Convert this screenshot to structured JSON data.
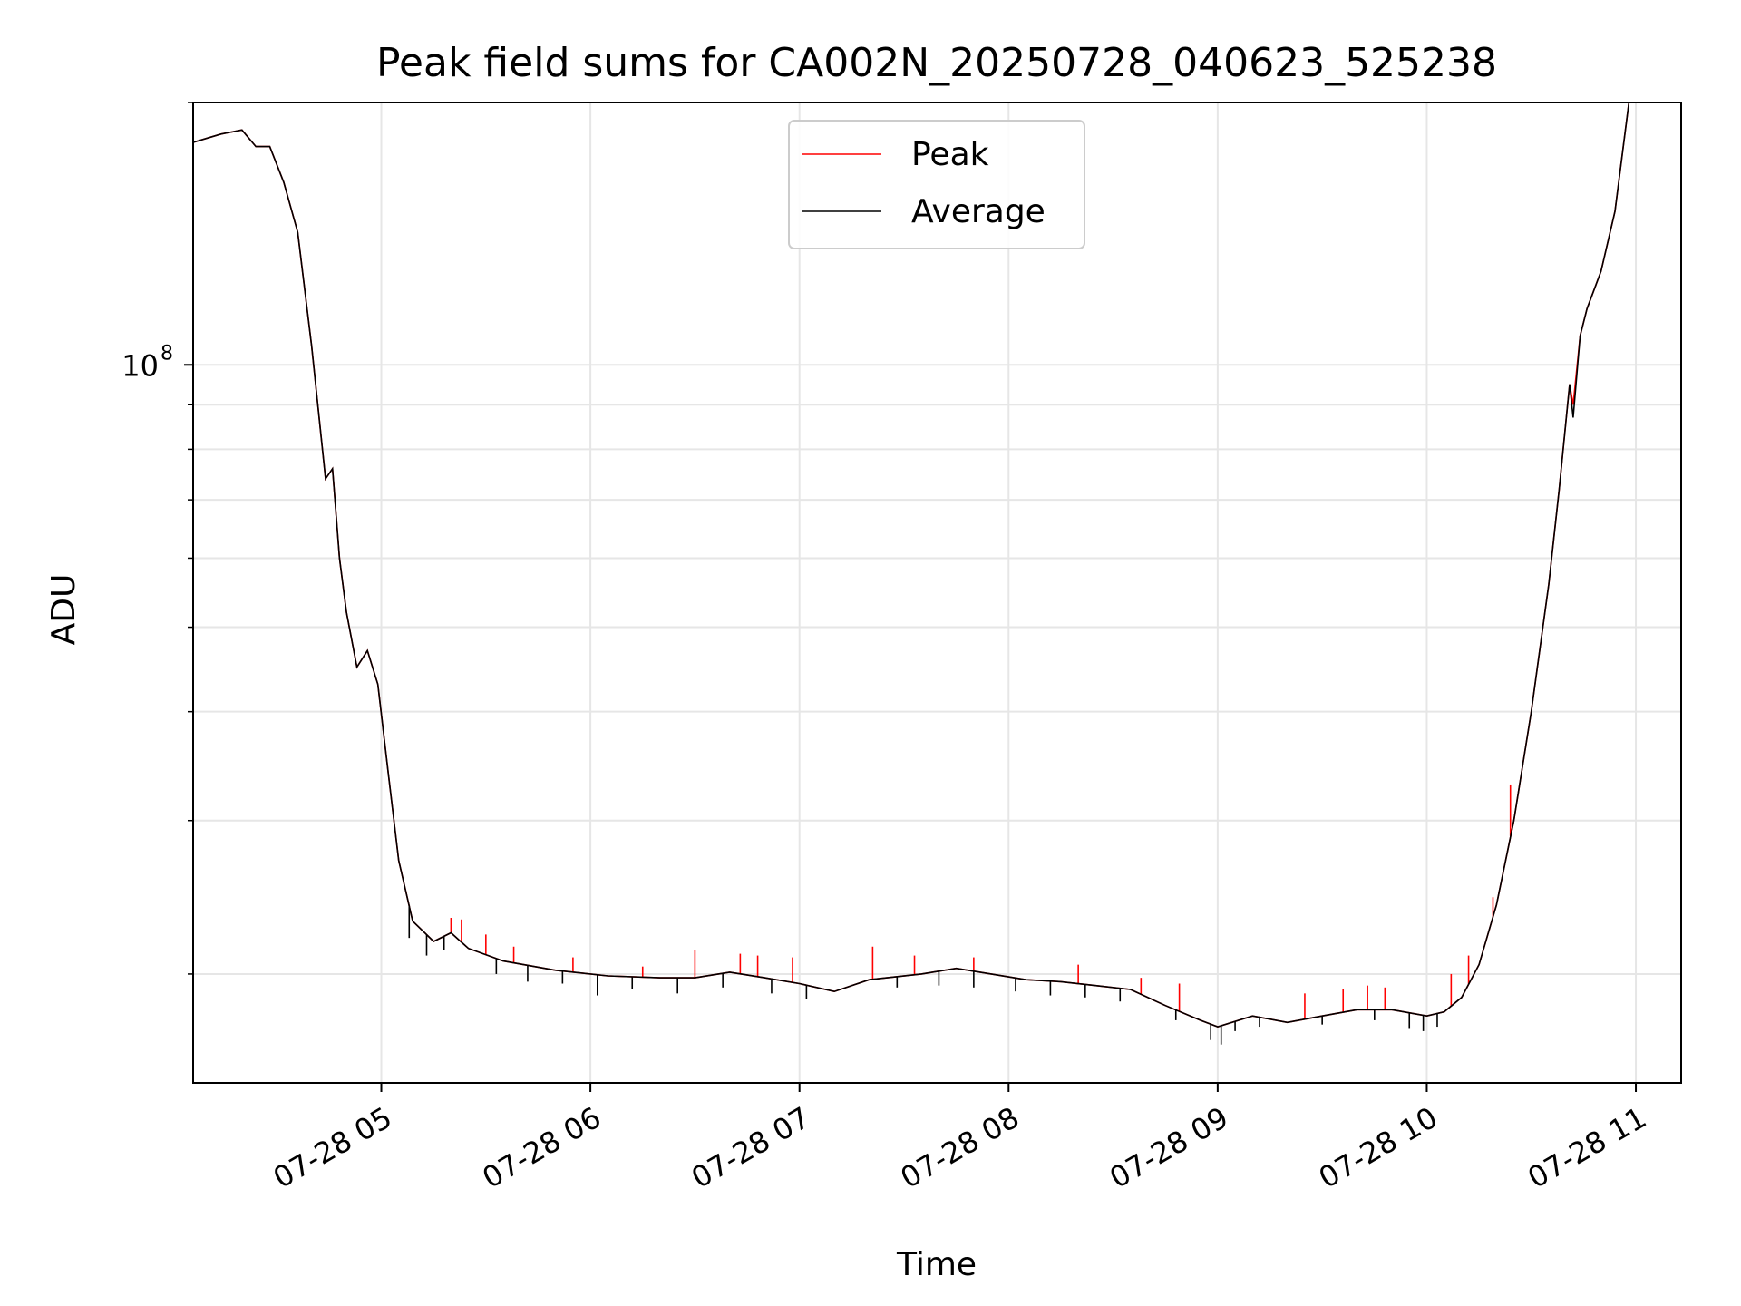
{
  "chart_data": {
    "type": "line",
    "title": "Peak field sums for CA002N_20250728_040623_525238",
    "xlabel": "Time",
    "ylabel": "ADU",
    "x_scale": "time",
    "y_scale": "log",
    "xlim": [
      "2025-07-28 04:06",
      "2025-07-28 11:13"
    ],
    "ylim": [
      15000000,
      200000000
    ],
    "x_ticks": [
      "07-28 05",
      "07-28 06",
      "07-28 07",
      "07-28 08",
      "07-28 09",
      "07-28 10",
      "07-28 11"
    ],
    "x_tick_times": [
      "2025-07-28 05:00",
      "2025-07-28 06:00",
      "2025-07-28 07:00",
      "2025-07-28 08:00",
      "2025-07-28 09:00",
      "2025-07-28 10:00",
      "2025-07-28 11:00"
    ],
    "y_major_ticks": [
      {
        "value": 100000000,
        "label_base": "10",
        "label_exp": "8"
      }
    ],
    "y_minor_ticks": [
      20000000,
      30000000,
      40000000,
      50000000,
      60000000,
      70000000,
      80000000,
      90000000,
      200000000
    ],
    "grid": true,
    "legend_position": "top-center",
    "series": [
      {
        "name": "Peak",
        "color": "#ff0000",
        "points": [
          [
            "2025-07-28 04:06",
            180000000
          ],
          [
            "2025-07-28 04:14",
            184000000
          ],
          [
            "2025-07-28 04:20",
            186000000
          ],
          [
            "2025-07-28 04:24",
            178000000
          ],
          [
            "2025-07-28 04:28",
            178000000
          ],
          [
            "2025-07-28 04:32",
            162000000
          ],
          [
            "2025-07-28 04:36",
            142000000
          ],
          [
            "2025-07-28 04:40",
            105000000
          ],
          [
            "2025-07-28 04:44",
            74000000
          ],
          [
            "2025-07-28 04:46",
            76000000
          ],
          [
            "2025-07-28 04:48",
            60000000
          ],
          [
            "2025-07-28 04:50",
            52000000
          ],
          [
            "2025-07-28 04:53",
            45000000
          ],
          [
            "2025-07-28 04:56",
            47000000
          ],
          [
            "2025-07-28 04:59",
            43000000
          ],
          [
            "2025-07-28 05:02",
            34000000
          ],
          [
            "2025-07-28 05:05",
            27000000
          ],
          [
            "2025-07-28 05:09",
            23000000
          ],
          [
            "2025-07-28 05:15",
            21800000
          ],
          [
            "2025-07-28 05:20",
            22300000
          ],
          [
            "2025-07-28 05:25",
            21400000
          ],
          [
            "2025-07-28 05:35",
            20700000
          ],
          [
            "2025-07-28 05:50",
            20200000
          ],
          [
            "2025-07-28 06:05",
            19900000
          ],
          [
            "2025-07-28 06:20",
            19800000
          ],
          [
            "2025-07-28 06:30",
            19800000
          ],
          [
            "2025-07-28 06:40",
            20100000
          ],
          [
            "2025-07-28 06:50",
            19800000
          ],
          [
            "2025-07-28 07:00",
            19500000
          ],
          [
            "2025-07-28 07:10",
            19100000
          ],
          [
            "2025-07-28 07:20",
            19700000
          ],
          [
            "2025-07-28 07:35",
            20000000
          ],
          [
            "2025-07-28 07:45",
            20300000
          ],
          [
            "2025-07-28 07:55",
            20000000
          ],
          [
            "2025-07-28 08:05",
            19700000
          ],
          [
            "2025-07-28 08:15",
            19600000
          ],
          [
            "2025-07-28 08:25",
            19400000
          ],
          [
            "2025-07-28 08:35",
            19200000
          ],
          [
            "2025-07-28 08:45",
            18400000
          ],
          [
            "2025-07-28 08:55",
            17700000
          ],
          [
            "2025-07-28 09:00",
            17400000
          ],
          [
            "2025-07-28 09:10",
            17900000
          ],
          [
            "2025-07-28 09:20",
            17600000
          ],
          [
            "2025-07-28 09:30",
            17900000
          ],
          [
            "2025-07-28 09:40",
            18200000
          ],
          [
            "2025-07-28 09:50",
            18200000
          ],
          [
            "2025-07-28 10:00",
            17900000
          ],
          [
            "2025-07-28 10:05",
            18100000
          ],
          [
            "2025-07-28 10:10",
            18800000
          ],
          [
            "2025-07-28 10:15",
            20500000
          ],
          [
            "2025-07-28 10:20",
            24000000
          ],
          [
            "2025-07-28 10:25",
            30000000
          ],
          [
            "2025-07-28 10:30",
            40000000
          ],
          [
            "2025-07-28 10:35",
            56000000
          ],
          [
            "2025-07-28 10:38",
            72000000
          ],
          [
            "2025-07-28 10:41",
            95000000
          ],
          [
            "2025-07-28 10:42",
            90000000
          ],
          [
            "2025-07-28 10:44",
            108000000
          ],
          [
            "2025-07-28 10:46",
            116000000
          ],
          [
            "2025-07-28 10:50",
            128000000
          ],
          [
            "2025-07-28 10:54",
            150000000
          ],
          [
            "2025-07-28 10:58",
            200000000
          ]
        ]
      },
      {
        "name": "Average",
        "color": "#000000",
        "points": [
          [
            "2025-07-28 04:06",
            180000000
          ],
          [
            "2025-07-28 04:14",
            184000000
          ],
          [
            "2025-07-28 04:20",
            186000000
          ],
          [
            "2025-07-28 04:24",
            178000000
          ],
          [
            "2025-07-28 04:28",
            178000000
          ],
          [
            "2025-07-28 04:32",
            162000000
          ],
          [
            "2025-07-28 04:36",
            142000000
          ],
          [
            "2025-07-28 04:40",
            105000000
          ],
          [
            "2025-07-28 04:44",
            74000000
          ],
          [
            "2025-07-28 04:46",
            76000000
          ],
          [
            "2025-07-28 04:48",
            60000000
          ],
          [
            "2025-07-28 04:50",
            52000000
          ],
          [
            "2025-07-28 04:53",
            45000000
          ],
          [
            "2025-07-28 04:56",
            47000000
          ],
          [
            "2025-07-28 04:59",
            43000000
          ],
          [
            "2025-07-28 05:02",
            34000000
          ],
          [
            "2025-07-28 05:05",
            27000000
          ],
          [
            "2025-07-28 05:09",
            23000000
          ],
          [
            "2025-07-28 05:15",
            21800000
          ],
          [
            "2025-07-28 05:20",
            22300000
          ],
          [
            "2025-07-28 05:25",
            21400000
          ],
          [
            "2025-07-28 05:35",
            20700000
          ],
          [
            "2025-07-28 05:50",
            20200000
          ],
          [
            "2025-07-28 06:05",
            19900000
          ],
          [
            "2025-07-28 06:20",
            19800000
          ],
          [
            "2025-07-28 06:30",
            19800000
          ],
          [
            "2025-07-28 06:40",
            20100000
          ],
          [
            "2025-07-28 06:50",
            19800000
          ],
          [
            "2025-07-28 07:00",
            19500000
          ],
          [
            "2025-07-28 07:10",
            19100000
          ],
          [
            "2025-07-28 07:20",
            19700000
          ],
          [
            "2025-07-28 07:35",
            20000000
          ],
          [
            "2025-07-28 07:45",
            20300000
          ],
          [
            "2025-07-28 07:55",
            20000000
          ],
          [
            "2025-07-28 08:05",
            19700000
          ],
          [
            "2025-07-28 08:15",
            19600000
          ],
          [
            "2025-07-28 08:25",
            19400000
          ],
          [
            "2025-07-28 08:35",
            19200000
          ],
          [
            "2025-07-28 08:45",
            18400000
          ],
          [
            "2025-07-28 08:55",
            17700000
          ],
          [
            "2025-07-28 09:00",
            17400000
          ],
          [
            "2025-07-28 09:10",
            17900000
          ],
          [
            "2025-07-28 09:20",
            17600000
          ],
          [
            "2025-07-28 09:30",
            17900000
          ],
          [
            "2025-07-28 09:40",
            18200000
          ],
          [
            "2025-07-28 09:50",
            18200000
          ],
          [
            "2025-07-28 10:00",
            17900000
          ],
          [
            "2025-07-28 10:05",
            18100000
          ],
          [
            "2025-07-28 10:10",
            18800000
          ],
          [
            "2025-07-28 10:15",
            20500000
          ],
          [
            "2025-07-28 10:20",
            24000000
          ],
          [
            "2025-07-28 10:25",
            30000000
          ],
          [
            "2025-07-28 10:30",
            40000000
          ],
          [
            "2025-07-28 10:35",
            56000000
          ],
          [
            "2025-07-28 10:38",
            72000000
          ],
          [
            "2025-07-28 10:41",
            95000000
          ],
          [
            "2025-07-28 10:42",
            87000000
          ],
          [
            "2025-07-28 10:44",
            108000000
          ],
          [
            "2025-07-28 10:46",
            116000000
          ],
          [
            "2025-07-28 10:50",
            128000000
          ],
          [
            "2025-07-28 10:54",
            150000000
          ],
          [
            "2025-07-28 10:58",
            200000000
          ]
        ],
        "dips": [
          [
            "2025-07-28 05:08",
            22000000
          ],
          [
            "2025-07-28 05:13",
            21000000
          ],
          [
            "2025-07-28 05:18",
            21300000
          ],
          [
            "2025-07-28 05:33",
            20000000
          ],
          [
            "2025-07-28 05:42",
            19600000
          ],
          [
            "2025-07-28 05:52",
            19500000
          ],
          [
            "2025-07-28 06:02",
            18900000
          ],
          [
            "2025-07-28 06:12",
            19200000
          ],
          [
            "2025-07-28 06:25",
            19000000
          ],
          [
            "2025-07-28 06:38",
            19300000
          ],
          [
            "2025-07-28 06:52",
            19000000
          ],
          [
            "2025-07-28 07:02",
            18700000
          ],
          [
            "2025-07-28 07:28",
            19300000
          ],
          [
            "2025-07-28 07:40",
            19400000
          ],
          [
            "2025-07-28 07:50",
            19300000
          ],
          [
            "2025-07-28 08:02",
            19100000
          ],
          [
            "2025-07-28 08:12",
            18900000
          ],
          [
            "2025-07-28 08:22",
            18800000
          ],
          [
            "2025-07-28 08:32",
            18600000
          ],
          [
            "2025-07-28 08:48",
            17700000
          ],
          [
            "2025-07-28 08:58",
            16800000
          ],
          [
            "2025-07-28 09:01",
            16600000
          ],
          [
            "2025-07-28 09:05",
            17200000
          ],
          [
            "2025-07-28 09:12",
            17400000
          ],
          [
            "2025-07-28 09:30",
            17500000
          ],
          [
            "2025-07-28 09:45",
            17700000
          ],
          [
            "2025-07-28 09:55",
            17300000
          ],
          [
            "2025-07-28 09:59",
            17200000
          ],
          [
            "2025-07-28 10:03",
            17400000
          ]
        ]
      }
    ],
    "peak_spikes": [
      [
        "2025-07-28 05:20",
        23200000
      ],
      [
        "2025-07-28 05:23",
        23100000
      ],
      [
        "2025-07-28 05:30",
        22200000
      ],
      [
        "2025-07-28 05:38",
        21500000
      ],
      [
        "2025-07-28 05:55",
        20900000
      ],
      [
        "2025-07-28 06:15",
        20400000
      ],
      [
        "2025-07-28 06:30",
        21300000
      ],
      [
        "2025-07-28 06:43",
        21100000
      ],
      [
        "2025-07-28 06:48",
        21000000
      ],
      [
        "2025-07-28 06:58",
        20900000
      ],
      [
        "2025-07-28 07:21",
        21500000
      ],
      [
        "2025-07-28 07:33",
        21000000
      ],
      [
        "2025-07-28 07:50",
        20900000
      ],
      [
        "2025-07-28 08:20",
        20500000
      ],
      [
        "2025-07-28 08:38",
        19800000
      ],
      [
        "2025-07-28 08:49",
        19500000
      ],
      [
        "2025-07-28 09:25",
        19000000
      ],
      [
        "2025-07-28 09:36",
        19200000
      ],
      [
        "2025-07-28 09:43",
        19400000
      ],
      [
        "2025-07-28 09:48",
        19300000
      ],
      [
        "2025-07-28 10:07",
        20000000
      ],
      [
        "2025-07-28 10:12",
        21000000
      ],
      [
        "2025-07-28 10:19",
        24500000
      ],
      [
        "2025-07-28 10:24",
        33000000
      ]
    ]
  }
}
